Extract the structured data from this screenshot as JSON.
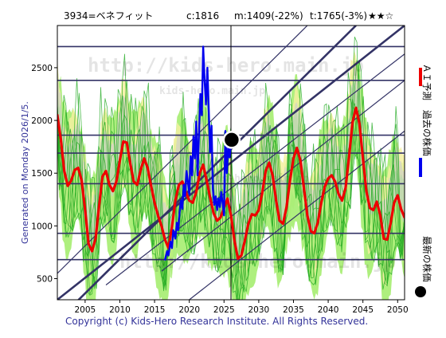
{
  "header": {
    "code_name": "3934=ベネフィット",
    "current": "c:1816",
    "min_info": "m:1409(-22%)",
    "target": "t:1765(-3%)",
    "stars": "★★☆"
  },
  "side_label": "Generated on Monday 2026/1/5.",
  "copyright": "Copyright (c) Kids-Hero Research Institute. All Rights Reserved.",
  "watermark": {
    "main": "http://kids-hero.main.jp",
    "small": "kids-hero.main.jp"
  },
  "legend": [
    {
      "label": "ＡＩ予測",
      "color": "#ee0000"
    },
    {
      "label": "過去の株価",
      "color": "#0000ee"
    },
    {
      "label": "最新の株価",
      "color": "#000000"
    }
  ],
  "colors": {
    "ai_line": "#ee0000",
    "past_line": "#0000ee",
    "marker": "#000000",
    "band_green": "#aaee77",
    "band_yellow": "#f4f0a0",
    "band_gray": "#c9c9d6",
    "thin_green": "#22aa22",
    "guide": "#333366"
  },
  "chart_data": {
    "type": "line",
    "xlim": [
      2001,
      2051
    ],
    "ylim": [
      300,
      2900
    ],
    "x_ticks": [
      2005,
      2010,
      2015,
      2020,
      2025,
      2030,
      2035,
      2040,
      2045,
      2050
    ],
    "y_ticks": [
      500,
      1000,
      1500,
      2000,
      2500
    ],
    "horizontal_levels": [
      680,
      930,
      1400,
      1690,
      1860,
      2380,
      2700
    ],
    "diagonal_lines": [
      {
        "x": [
          2001,
          2044
        ],
        "y": [
          100,
          2900
        ],
        "weight": "thick"
      },
      {
        "x": [
          2001,
          2051
        ],
        "y": [
          300,
          2900
        ],
        "weight": "thick"
      },
      {
        "x": [
          2016,
          2051
        ],
        "y": [
          570,
          2380
        ],
        "weight": "thin"
      },
      {
        "x": [
          2008,
          2051
        ],
        "y": [
          440,
          2630
        ],
        "weight": "thin"
      },
      {
        "x": [
          2020,
          2051
        ],
        "y": [
          300,
          1900
        ],
        "weight": "thin"
      },
      {
        "x": [
          2001,
          2037
        ],
        "y": [
          550,
          2900
        ],
        "weight": "thin"
      }
    ],
    "vertical_marker_x": 2026,
    "latest_point": {
      "x": 2026.1,
      "y": 1816
    },
    "series": [
      {
        "name": "ＡＩ予測",
        "x": [
          2001.0,
          2001.5,
          2002.0,
          2002.5,
          2003.0,
          2003.5,
          2004.0,
          2004.5,
          2005.0,
          2005.5,
          2006.0,
          2006.5,
          2007.0,
          2007.5,
          2008.0,
          2008.5,
          2009.0,
          2009.5,
          2010.0,
          2010.5,
          2011.0,
          2011.5,
          2012.0,
          2012.5,
          2013.0,
          2013.5,
          2014.0,
          2014.5,
          2015.0,
          2015.5,
          2016.0,
          2016.5,
          2017.0,
          2017.5,
          2018.0,
          2018.5,
          2019.0,
          2019.5,
          2020.0,
          2020.5,
          2021.0,
          2021.5,
          2022.0,
          2022.5,
          2023.0,
          2023.5,
          2024.0,
          2024.5,
          2025.0,
          2025.5,
          2026.0,
          2026.5,
          2027.0,
          2027.5,
          2028.0,
          2028.5,
          2029.0,
          2029.5,
          2030.0,
          2030.5,
          2031.0,
          2031.5,
          2032.0,
          2032.5,
          2033.0,
          2033.5,
          2034.0,
          2034.5,
          2035.0,
          2035.5,
          2036.0,
          2036.5,
          2037.0,
          2037.5,
          2038.0,
          2038.5,
          2039.0,
          2039.5,
          2040.0,
          2040.5,
          2041.0,
          2041.5,
          2042.0,
          2042.5,
          2043.0,
          2043.5,
          2044.0,
          2044.5,
          2045.0,
          2045.5,
          2046.0,
          2046.5,
          2047.0,
          2047.5,
          2048.0,
          2048.5,
          2049.0,
          2049.5,
          2050.0,
          2050.5,
          2051.0
        ],
        "y": [
          2050,
          1820,
          1520,
          1380,
          1430,
          1530,
          1550,
          1430,
          1150,
          830,
          760,
          880,
          1180,
          1470,
          1520,
          1390,
          1330,
          1420,
          1620,
          1800,
          1790,
          1590,
          1420,
          1390,
          1530,
          1640,
          1550,
          1380,
          1220,
          1100,
          1000,
          870,
          790,
          990,
          1240,
          1390,
          1420,
          1320,
          1240,
          1220,
          1320,
          1500,
          1580,
          1430,
          1270,
          1120,
          1050,
          1080,
          1170,
          1260,
          1100,
          860,
          690,
          720,
          860,
          1020,
          1110,
          1100,
          1150,
          1310,
          1520,
          1600,
          1480,
          1240,
          1050,
          1020,
          1180,
          1430,
          1640,
          1740,
          1620,
          1360,
          1100,
          950,
          930,
          1030,
          1220,
          1370,
          1450,
          1480,
          1420,
          1300,
          1240,
          1360,
          1650,
          1980,
          2120,
          1970,
          1640,
          1330,
          1170,
          1150,
          1230,
          1100,
          880,
          870,
          1030,
          1220,
          1290,
          1160,
          1080
        ]
      },
      {
        "name": "過去の株価",
        "x": [
          2016.5,
          2016.8,
          2017.0,
          2017.3,
          2017.5,
          2017.7,
          2018.0,
          2018.2,
          2018.4,
          2018.6,
          2018.8,
          2019.0,
          2019.2,
          2019.4,
          2019.6,
          2019.8,
          2020.0,
          2020.2,
          2020.4,
          2020.6,
          2020.8,
          2021.0,
          2021.2,
          2021.4,
          2021.6,
          2021.8,
          2022.0,
          2022.2,
          2022.4,
          2022.6,
          2022.8,
          2023.0,
          2023.2,
          2023.4,
          2023.6,
          2023.8,
          2024.0,
          2024.2,
          2024.4,
          2024.6,
          2024.8,
          2025.0,
          2025.2,
          2025.4,
          2025.6,
          2025.8,
          2026.0,
          2026.1
        ],
        "y": [
          680,
          760,
          720,
          850,
          790,
          960,
          880,
          1030,
          960,
          1130,
          1240,
          1160,
          1390,
          1280,
          1520,
          1420,
          1300,
          1660,
          1480,
          1850,
          1640,
          1990,
          1480,
          1900,
          2250,
          2050,
          2700,
          2380,
          2150,
          2500,
          2100,
          1700,
          1950,
          1350,
          1200,
          1280,
          1150,
          1260,
          1180,
          1320,
          1220,
          1100,
          1900,
          1500,
          1750,
          1650,
          1790,
          1816
        ]
      }
    ]
  }
}
